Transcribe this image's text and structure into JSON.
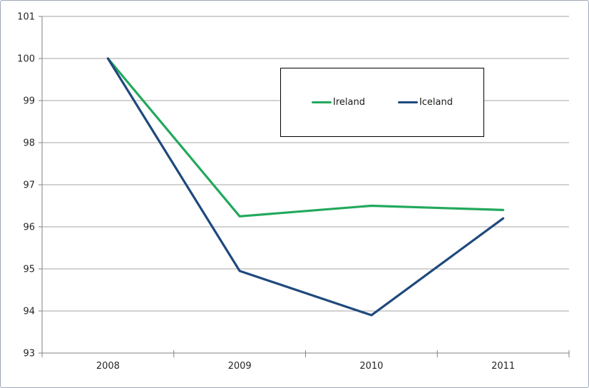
{
  "chart_data": {
    "type": "line",
    "title": "",
    "categories": [
      "2008",
      "2009",
      "2010",
      "2011"
    ],
    "series": [
      {
        "name": "Ireland",
        "color": "#22A95C",
        "values": [
          100,
          96.25,
          96.5,
          96.4
        ]
      },
      {
        "name": "Iceland",
        "color": "#1F497D",
        "values": [
          100,
          94.95,
          93.9,
          96.2
        ]
      }
    ],
    "xlabel": "",
    "ylabel": "",
    "ylim": [
      93,
      101
    ],
    "yticks": [
      93,
      94,
      95,
      96,
      97,
      98,
      99,
      100,
      101
    ],
    "grid": "horizontal-only",
    "legend": {
      "position": "top-center-boxed",
      "entries": [
        "Ireland",
        "Iceland"
      ]
    }
  },
  "colors": {
    "ireland_line": "#22A95C",
    "iceland_line": "#1F497D",
    "gridline": "#A6A6A6",
    "axis_line": "#808080",
    "tick_text": "#262626",
    "legend_border": "#000000",
    "chart_border": "#9FA8B6",
    "background": "#FFFFFF"
  }
}
